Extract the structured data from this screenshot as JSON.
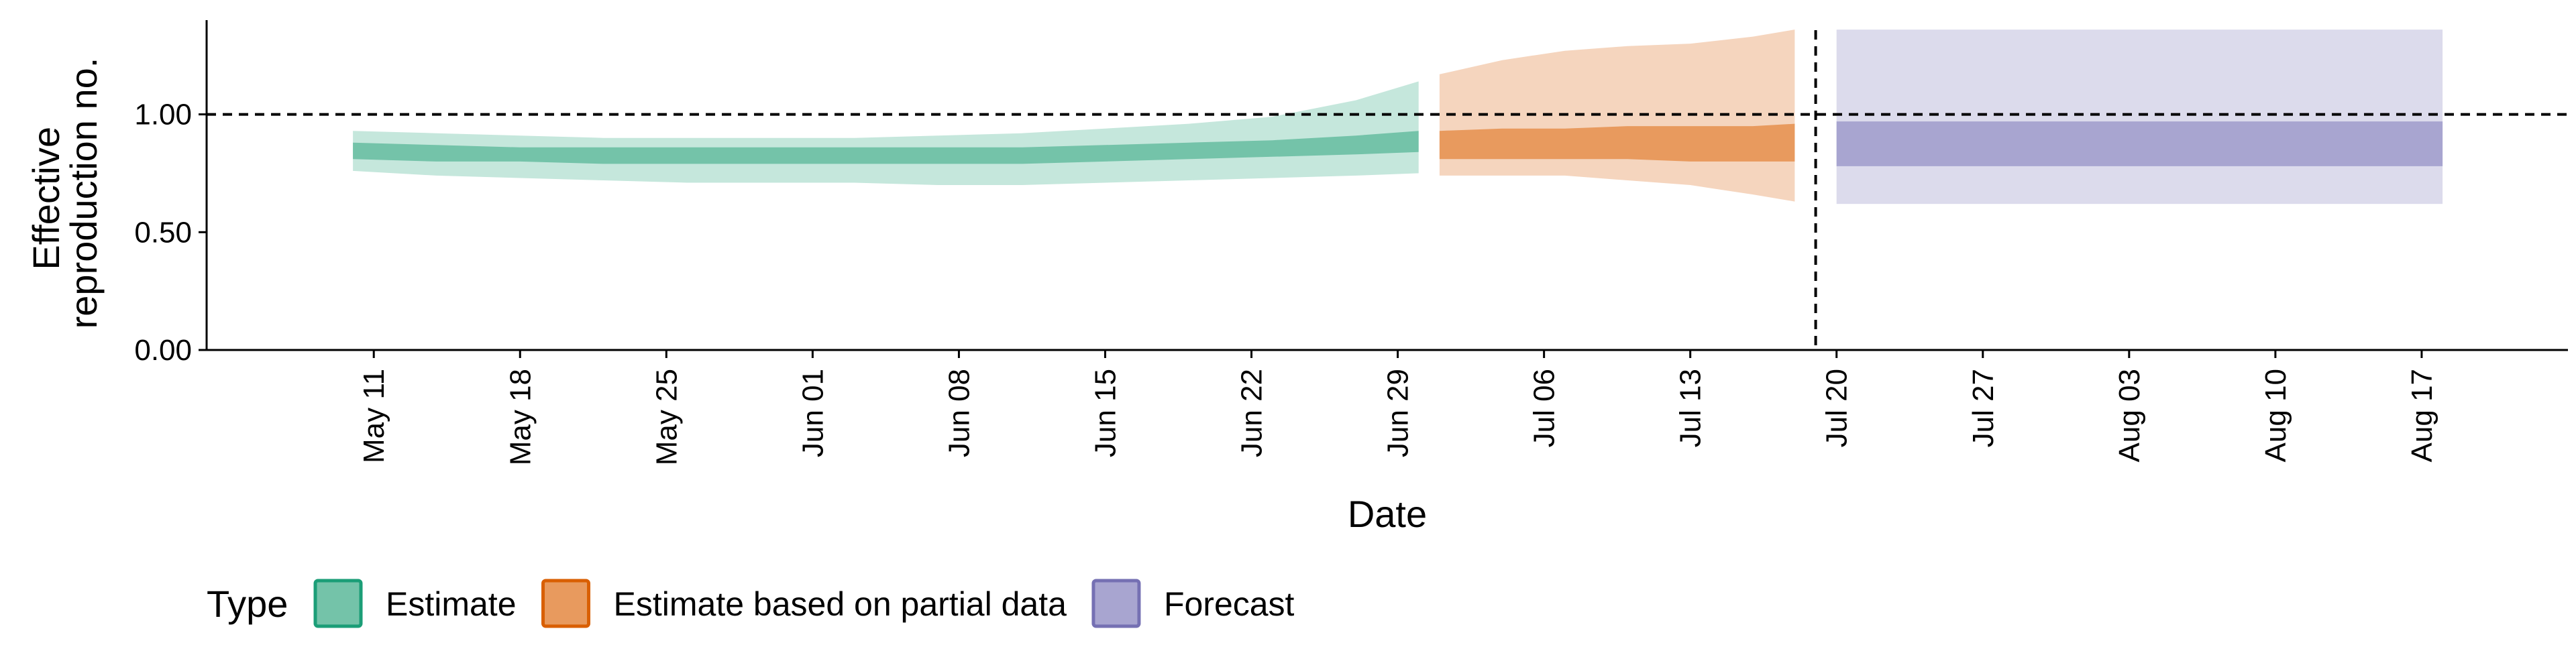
{
  "chart_data": {
    "type": "area",
    "xlabel": "Date",
    "ylabel_lines": [
      "Effective",
      "reproduction no."
    ],
    "ylim": [
      0,
      1.4
    ],
    "xlim": [
      "2020-05-03",
      "2020-08-24"
    ],
    "y_ticks": [
      {
        "value": 0,
        "label": "0.00"
      },
      {
        "value": 0.5,
        "label": "0.50"
      },
      {
        "value": 1,
        "label": "1.00"
      }
    ],
    "x_ticks": [
      {
        "date": "2020-05-11",
        "label": "May 11"
      },
      {
        "date": "2020-05-18",
        "label": "May 18"
      },
      {
        "date": "2020-05-25",
        "label": "May 25"
      },
      {
        "date": "2020-06-01",
        "label": "Jun 01"
      },
      {
        "date": "2020-06-08",
        "label": "Jun 08"
      },
      {
        "date": "2020-06-15",
        "label": "Jun 15"
      },
      {
        "date": "2020-06-22",
        "label": "Jun 22"
      },
      {
        "date": "2020-06-29",
        "label": "Jun 29"
      },
      {
        "date": "2020-07-06",
        "label": "Jul 06"
      },
      {
        "date": "2020-07-13",
        "label": "Jul 13"
      },
      {
        "date": "2020-07-20",
        "label": "Jul 20"
      },
      {
        "date": "2020-07-27",
        "label": "Jul 27"
      },
      {
        "date": "2020-08-03",
        "label": "Aug 03"
      },
      {
        "date": "2020-08-10",
        "label": "Aug 10"
      },
      {
        "date": "2020-08-17",
        "label": "Aug 17"
      }
    ],
    "reference_lines": {
      "horizontal_y": 1.0,
      "vertical_date": "2020-07-19",
      "style": "dashed"
    },
    "grid": false,
    "legend": {
      "title": "Type",
      "position": "bottom-left",
      "entries": [
        {
          "label": "Estimate",
          "fill": "#74C3A9",
          "border": "#1B9E77"
        },
        {
          "label": "Estimate based on partial data",
          "fill": "#E89A5E",
          "border": "#D95F02"
        },
        {
          "label": "Forecast",
          "fill": "#A8A5D0",
          "border": "#7570B3"
        }
      ]
    },
    "series": [
      {
        "name": "Estimate",
        "color_outer": "#C5E7DC",
        "color_inner": "#74C3A9",
        "points": [
          {
            "x": "2020-05-10",
            "lower90": 0.76,
            "lower50": 0.81,
            "upper50": 0.88,
            "upper90": 0.93
          },
          {
            "x": "2020-05-14",
            "lower90": 0.74,
            "lower50": 0.8,
            "upper50": 0.87,
            "upper90": 0.92
          },
          {
            "x": "2020-05-18",
            "lower90": 0.73,
            "lower50": 0.8,
            "upper50": 0.86,
            "upper90": 0.91
          },
          {
            "x": "2020-05-22",
            "lower90": 0.72,
            "lower50": 0.79,
            "upper50": 0.86,
            "upper90": 0.9
          },
          {
            "x": "2020-05-26",
            "lower90": 0.71,
            "lower50": 0.79,
            "upper50": 0.86,
            "upper90": 0.9
          },
          {
            "x": "2020-05-30",
            "lower90": 0.71,
            "lower50": 0.79,
            "upper50": 0.86,
            "upper90": 0.9
          },
          {
            "x": "2020-06-03",
            "lower90": 0.71,
            "lower50": 0.79,
            "upper50": 0.86,
            "upper90": 0.9
          },
          {
            "x": "2020-06-07",
            "lower90": 0.7,
            "lower50": 0.79,
            "upper50": 0.86,
            "upper90": 0.91
          },
          {
            "x": "2020-06-11",
            "lower90": 0.7,
            "lower50": 0.79,
            "upper50": 0.86,
            "upper90": 0.92
          },
          {
            "x": "2020-06-15",
            "lower90": 0.71,
            "lower50": 0.8,
            "upper50": 0.87,
            "upper90": 0.94
          },
          {
            "x": "2020-06-19",
            "lower90": 0.72,
            "lower50": 0.81,
            "upper50": 0.88,
            "upper90": 0.96
          },
          {
            "x": "2020-06-23",
            "lower90": 0.73,
            "lower50": 0.82,
            "upper50": 0.89,
            "upper90": 0.99
          },
          {
            "x": "2020-06-27",
            "lower90": 0.74,
            "lower50": 0.83,
            "upper50": 0.91,
            "upper90": 1.06
          },
          {
            "x": "2020-06-30",
            "lower90": 0.75,
            "lower50": 0.84,
            "upper50": 0.93,
            "upper90": 1.14
          }
        ]
      },
      {
        "name": "Estimate based on partial data",
        "color_outer": "#F5D5BE",
        "color_inner": "#E89A5E",
        "points": [
          {
            "x": "2020-07-01",
            "lower90": 0.74,
            "lower50": 0.81,
            "upper50": 0.93,
            "upper90": 1.17
          },
          {
            "x": "2020-07-04",
            "lower90": 0.74,
            "lower50": 0.81,
            "upper50": 0.94,
            "upper90": 1.23
          },
          {
            "x": "2020-07-07",
            "lower90": 0.74,
            "lower50": 0.81,
            "upper50": 0.94,
            "upper90": 1.27
          },
          {
            "x": "2020-07-10",
            "lower90": 0.72,
            "lower50": 0.81,
            "upper50": 0.95,
            "upper90": 1.29
          },
          {
            "x": "2020-07-13",
            "lower90": 0.7,
            "lower50": 0.8,
            "upper50": 0.95,
            "upper90": 1.3
          },
          {
            "x": "2020-07-16",
            "lower90": 0.66,
            "lower50": 0.8,
            "upper50": 0.95,
            "upper90": 1.33
          },
          {
            "x": "2020-07-18",
            "lower90": 0.63,
            "lower50": 0.8,
            "upper50": 0.96,
            "upper90": 1.36
          }
        ]
      },
      {
        "name": "Forecast",
        "color_outer": "#DCDBEC",
        "color_inner": "#A8A5D0",
        "points": [
          {
            "x": "2020-07-20",
            "lower90": 0.62,
            "lower50": 0.78,
            "upper50": 0.97,
            "upper90": 1.36
          },
          {
            "x": "2020-08-18",
            "lower90": 0.62,
            "lower50": 0.78,
            "upper50": 0.97,
            "upper90": 1.36
          }
        ]
      }
    ]
  }
}
